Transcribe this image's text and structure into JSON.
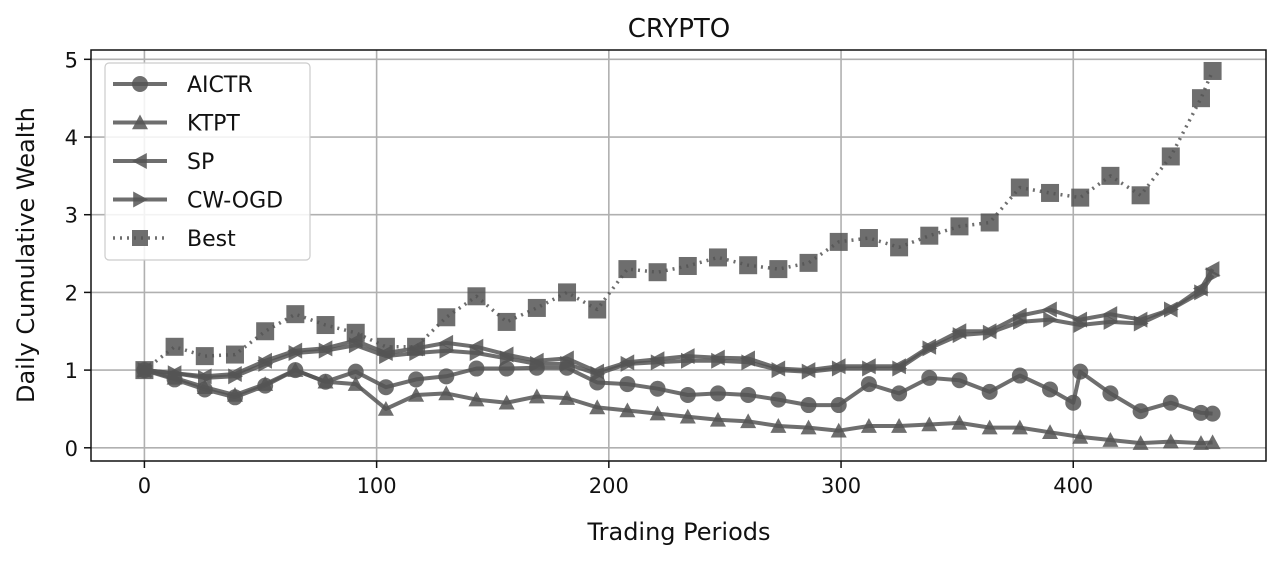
{
  "chart_data": {
    "type": "line",
    "title": "CRYPTO",
    "xlabel": "Trading Periods",
    "ylabel": "Daily Cumulative Wealth",
    "xlim": [
      -23,
      483
    ],
    "ylim": [
      -0.17,
      5.12
    ],
    "xticks": [
      0,
      100,
      200,
      300,
      400
    ],
    "yticks": [
      0,
      1,
      2,
      3,
      4,
      5
    ],
    "grid": true,
    "legend_position": "top-left",
    "line_color": "#555555",
    "series": [
      {
        "name": "AICTR",
        "marker": "circle",
        "linestyle": "solid",
        "x": [
          0,
          13,
          26,
          39,
          52,
          65,
          78,
          91,
          104,
          117,
          130,
          143,
          156,
          169,
          182,
          195,
          208,
          221,
          234,
          247,
          260,
          273,
          286,
          299,
          312,
          325,
          338,
          351,
          364,
          377,
          390,
          400,
          403,
          416,
          429,
          442,
          455,
          460
        ],
        "y": [
          1.0,
          0.88,
          0.75,
          0.65,
          0.8,
          1.0,
          0.85,
          0.98,
          0.78,
          0.88,
          0.92,
          1.02,
          1.02,
          1.03,
          1.03,
          0.84,
          0.82,
          0.76,
          0.68,
          0.7,
          0.68,
          0.62,
          0.55,
          0.55,
          0.82,
          0.7,
          0.9,
          0.87,
          0.72,
          0.93,
          0.75,
          0.58,
          0.98,
          0.7,
          0.47,
          0.58,
          0.45,
          0.44
        ]
      },
      {
        "name": "KTPT",
        "marker": "triangle-up",
        "linestyle": "solid",
        "x": [
          0,
          13,
          26,
          39,
          52,
          65,
          78,
          91,
          104,
          117,
          130,
          143,
          156,
          169,
          182,
          195,
          208,
          221,
          234,
          247,
          260,
          273,
          286,
          299,
          312,
          325,
          338,
          351,
          364,
          377,
          390,
          403,
          416,
          429,
          442,
          455,
          460
        ],
        "y": [
          1.0,
          0.9,
          0.78,
          0.68,
          0.82,
          1.0,
          0.85,
          0.82,
          0.5,
          0.68,
          0.7,
          0.62,
          0.58,
          0.66,
          0.64,
          0.52,
          0.48,
          0.44,
          0.4,
          0.36,
          0.34,
          0.28,
          0.26,
          0.22,
          0.28,
          0.28,
          0.3,
          0.32,
          0.26,
          0.26,
          0.2,
          0.14,
          0.1,
          0.06,
          0.08,
          0.06,
          0.07
        ]
      },
      {
        "name": "SP",
        "marker": "triangle-left",
        "linestyle": "solid",
        "x": [
          0,
          13,
          26,
          39,
          52,
          65,
          78,
          91,
          104,
          117,
          130,
          143,
          156,
          169,
          182,
          195,
          208,
          221,
          234,
          247,
          260,
          273,
          286,
          299,
          312,
          325,
          338,
          351,
          364,
          377,
          390,
          403,
          416,
          429,
          442,
          455,
          460
        ],
        "y": [
          1.0,
          0.96,
          0.92,
          0.95,
          1.12,
          1.25,
          1.28,
          1.38,
          1.22,
          1.28,
          1.35,
          1.3,
          1.2,
          1.12,
          1.15,
          0.98,
          1.1,
          1.14,
          1.18,
          1.16,
          1.15,
          1.02,
          1.0,
          1.05,
          1.05,
          1.05,
          1.3,
          1.5,
          1.5,
          1.7,
          1.78,
          1.65,
          1.72,
          1.65,
          1.78,
          2.05,
          2.3
        ]
      },
      {
        "name": "CW-OGD",
        "marker": "triangle-right",
        "linestyle": "solid",
        "x": [
          0,
          13,
          26,
          39,
          52,
          65,
          78,
          91,
          104,
          117,
          130,
          143,
          156,
          169,
          182,
          195,
          208,
          221,
          234,
          247,
          260,
          273,
          286,
          299,
          312,
          325,
          338,
          351,
          364,
          377,
          390,
          403,
          416,
          429,
          442,
          455,
          460
        ],
        "y": [
          1.0,
          0.96,
          0.9,
          0.92,
          1.08,
          1.22,
          1.25,
          1.32,
          1.18,
          1.22,
          1.25,
          1.22,
          1.15,
          1.08,
          1.08,
          0.95,
          1.08,
          1.1,
          1.12,
          1.12,
          1.1,
          1.0,
          0.98,
          1.02,
          1.02,
          1.02,
          1.28,
          1.45,
          1.48,
          1.62,
          1.65,
          1.58,
          1.62,
          1.6,
          1.78,
          2.0,
          2.22
        ]
      },
      {
        "name": "Best",
        "marker": "square",
        "linestyle": "dotted",
        "x": [
          0,
          13,
          26,
          39,
          52,
          65,
          78,
          91,
          104,
          117,
          130,
          143,
          156,
          169,
          182,
          195,
          208,
          221,
          234,
          247,
          260,
          273,
          286,
          299,
          312,
          325,
          338,
          351,
          364,
          377,
          390,
          403,
          416,
          429,
          442,
          455,
          460
        ],
        "y": [
          1.0,
          1.3,
          1.18,
          1.2,
          1.5,
          1.72,
          1.58,
          1.48,
          1.3,
          1.3,
          1.68,
          1.95,
          1.62,
          1.8,
          2.0,
          1.78,
          2.3,
          2.26,
          2.34,
          2.45,
          2.35,
          2.3,
          2.38,
          2.65,
          2.7,
          2.58,
          2.73,
          2.85,
          2.9,
          3.35,
          3.28,
          3.22,
          3.5,
          3.25,
          3.75,
          4.5,
          4.85
        ]
      }
    ]
  }
}
